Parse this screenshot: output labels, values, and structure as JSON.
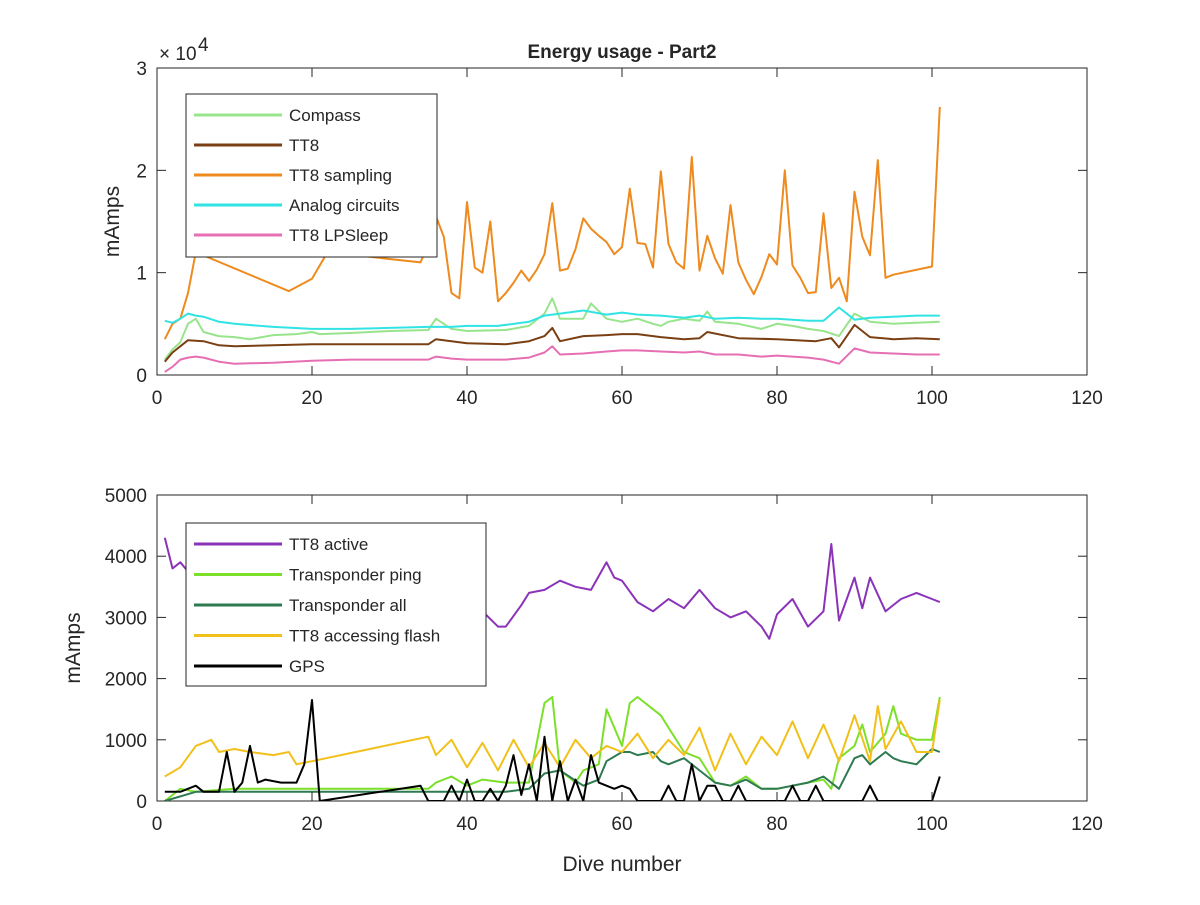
{
  "chart_data": [
    {
      "type": "line",
      "title": "Energy usage - Part2",
      "xlabel": "",
      "ylabel": "mAmps",
      "xlim": [
        0,
        120
      ],
      "ylim": [
        0,
        30000
      ],
      "xticks": [
        0,
        20,
        40,
        60,
        80,
        100,
        120
      ],
      "xtick_labels": [
        "0",
        "20",
        "40",
        "60",
        "80",
        "100",
        "120"
      ],
      "yticks": [
        0,
        10000,
        20000,
        30000
      ],
      "ytick_labels": [
        "0",
        "1",
        "2",
        "3"
      ],
      "y_exponent_label": "× 10",
      "y_exponent_power": "4",
      "legend_position": "top-left",
      "grid": false,
      "series": [
        {
          "name": "Compass",
          "color": "#98e48c",
          "x": [
            1,
            2,
            3,
            4,
            5,
            6,
            7,
            8,
            10,
            12,
            15,
            18,
            20,
            21,
            25,
            30,
            35,
            36,
            38,
            40,
            45,
            48,
            50,
            51,
            52,
            55,
            56,
            58,
            60,
            62,
            64,
            65,
            66,
            68,
            70,
            71,
            72,
            75,
            78,
            80,
            82,
            84,
            86,
            88,
            90,
            92,
            95,
            98,
            101
          ],
          "y": [
            1500,
            2500,
            3200,
            5000,
            5500,
            4200,
            4000,
            3800,
            3700,
            3500,
            3900,
            4000,
            4200,
            4000,
            4100,
            4300,
            4400,
            5500,
            4500,
            4300,
            4400,
            4800,
            6000,
            7500,
            5500,
            5500,
            7000,
            5500,
            5200,
            5500,
            5000,
            4800,
            5200,
            5500,
            5300,
            6200,
            5200,
            5000,
            4500,
            5000,
            4800,
            4500,
            4300,
            3800,
            6000,
            5200,
            5000,
            5100,
            5200
          ]
        },
        {
          "name": "TT8",
          "color": "#7a3f12",
          "x": [
            1,
            2,
            3,
            4,
            6,
            8,
            10,
            15,
            20,
            25,
            30,
            35,
            36,
            40,
            45,
            48,
            50,
            51,
            52,
            55,
            58,
            60,
            62,
            65,
            68,
            70,
            71,
            75,
            80,
            85,
            87,
            88,
            90,
            92,
            95,
            98,
            101
          ],
          "y": [
            1300,
            2200,
            2800,
            3400,
            3300,
            2900,
            2800,
            2900,
            3000,
            3000,
            3000,
            3000,
            3500,
            3100,
            3000,
            3300,
            3800,
            4600,
            3300,
            3800,
            3900,
            4000,
            4000,
            3700,
            3500,
            3600,
            4200,
            3600,
            3500,
            3300,
            3600,
            2700,
            4900,
            3700,
            3500,
            3600,
            3500
          ]
        },
        {
          "name": "TT8 sampling",
          "color": "#ee8a1e",
          "x": [
            1,
            2,
            3,
            4,
            5,
            17,
            20,
            22,
            34,
            35,
            36,
            37,
            38,
            39,
            40,
            41,
            42,
            43,
            44,
            45,
            46,
            47,
            48,
            49,
            50,
            51,
            52,
            53,
            54,
            55,
            56,
            57,
            58,
            59,
            60,
            61,
            62,
            63,
            64,
            65,
            66,
            67,
            68,
            69,
            70,
            71,
            72,
            73,
            74,
            75,
            76,
            77,
            78,
            79,
            80,
            81,
            82,
            83,
            84,
            85,
            86,
            87,
            88,
            89,
            90,
            91,
            92,
            93,
            94,
            95,
            100,
            101
          ],
          "y": [
            3500,
            5000,
            5500,
            8000,
            12000,
            8200,
            9400,
            12000,
            11000,
            12800,
            15500,
            13500,
            8000,
            7500,
            16900,
            10500,
            10000,
            15000,
            7200,
            8000,
            9000,
            10200,
            9200,
            10300,
            11800,
            16800,
            10200,
            10400,
            12300,
            15300,
            14300,
            13600,
            13000,
            11800,
            12500,
            18200,
            12900,
            12800,
            10500,
            19900,
            12800,
            11000,
            10400,
            21300,
            10200,
            13600,
            11400,
            9900,
            16600,
            11000,
            9300,
            7900,
            9600,
            11800,
            10800,
            20000,
            10700,
            9500,
            8000,
            8100,
            15800,
            8500,
            9500,
            7200,
            17900,
            13500,
            11700,
            21000,
            9500,
            9800,
            10600,
            26200
          ]
        },
        {
          "name": "Analog circuits",
          "color": "#31e3e3",
          "x": [
            1,
            2,
            3,
            4,
            5,
            6,
            8,
            10,
            15,
            20,
            25,
            30,
            35,
            38,
            40,
            44,
            48,
            50,
            52,
            55,
            58,
            60,
            62,
            65,
            68,
            70,
            72,
            75,
            78,
            80,
            82,
            84,
            86,
            88,
            90,
            92,
            95,
            98,
            101
          ],
          "y": [
            5300,
            5100,
            5500,
            6000,
            5800,
            5700,
            5200,
            5000,
            4700,
            4500,
            4500,
            4600,
            4700,
            4700,
            4800,
            4800,
            5200,
            5800,
            6000,
            6300,
            5900,
            6100,
            5900,
            5800,
            5600,
            5800,
            5500,
            5600,
            5500,
            5500,
            5400,
            5300,
            5300,
            6600,
            5400,
            5600,
            5700,
            5800,
            5800
          ]
        },
        {
          "name": "TT8 LPSleep",
          "color": "#e66fb4",
          "x": [
            1,
            2,
            3,
            4,
            5,
            6,
            8,
            10,
            15,
            20,
            25,
            30,
            35,
            36,
            38,
            40,
            45,
            48,
            50,
            51,
            52,
            55,
            58,
            60,
            62,
            65,
            68,
            70,
            72,
            75,
            78,
            80,
            82,
            84,
            86,
            88,
            90,
            92,
            95,
            98,
            101
          ],
          "y": [
            300,
            800,
            1500,
            1700,
            1800,
            1700,
            1300,
            1100,
            1200,
            1400,
            1500,
            1500,
            1500,
            1800,
            1600,
            1500,
            1500,
            1700,
            2200,
            2800,
            2000,
            2100,
            2300,
            2400,
            2400,
            2300,
            2200,
            2300,
            2000,
            2000,
            1800,
            1900,
            1800,
            1700,
            1500,
            1100,
            2600,
            2200,
            2100,
            2000,
            2000
          ]
        }
      ]
    },
    {
      "type": "line",
      "title": "",
      "xlabel": "Dive number",
      "ylabel": "mAmps",
      "xlim": [
        0,
        120
      ],
      "ylim": [
        0,
        5000
      ],
      "xticks": [
        0,
        20,
        40,
        60,
        80,
        100,
        120
      ],
      "xtick_labels": [
        "0",
        "20",
        "40",
        "60",
        "80",
        "100",
        "120"
      ],
      "yticks": [
        0,
        1000,
        2000,
        3000,
        4000,
        5000
      ],
      "ytick_labels": [
        "0",
        "1000",
        "2000",
        "3000",
        "4000",
        "5000"
      ],
      "legend_position": "top-left",
      "grid": false,
      "series": [
        {
          "name": "TT8 active",
          "color": "#8b33b8",
          "x": [
            1,
            2,
            3,
            4,
            5,
            6,
            8,
            10,
            15,
            20,
            25,
            30,
            35,
            38,
            40,
            42,
            44,
            45,
            47,
            48,
            50,
            52,
            54,
            56,
            58,
            59,
            60,
            62,
            64,
            66,
            68,
            70,
            72,
            74,
            76,
            78,
            79,
            80,
            82,
            84,
            86,
            87,
            88,
            90,
            91,
            92,
            94,
            96,
            98,
            100,
            101
          ],
          "y": [
            4300,
            3800,
            3900,
            3750,
            3300,
            3200,
            3200,
            3100,
            3150,
            3200,
            3150,
            3150,
            3150,
            3100,
            3050,
            3100,
            2850,
            2850,
            3200,
            3400,
            3450,
            3600,
            3500,
            3450,
            3900,
            3650,
            3600,
            3250,
            3100,
            3300,
            3150,
            3450,
            3150,
            3000,
            3100,
            2850,
            2650,
            3050,
            3300,
            2850,
            3100,
            4200,
            2950,
            3650,
            3150,
            3650,
            3100,
            3300,
            3400,
            3300,
            3250
          ]
        },
        {
          "name": "Transponder ping",
          "color": "#7ce02a",
          "x": [
            1,
            3,
            5,
            10,
            20,
            30,
            35,
            36,
            38,
            40,
            42,
            45,
            48,
            50,
            51,
            52,
            54,
            55,
            57,
            58,
            60,
            61,
            62,
            64,
            65,
            66,
            68,
            70,
            72,
            74,
            76,
            78,
            80,
            82,
            84,
            86,
            87,
            88,
            90,
            91,
            92,
            94,
            95,
            96,
            98,
            100,
            101
          ],
          "y": [
            0,
            200,
            150,
            200,
            200,
            200,
            200,
            300,
            400,
            250,
            350,
            300,
            300,
            1600,
            1700,
            500,
            300,
            500,
            600,
            1500,
            900,
            1600,
            1700,
            1500,
            1400,
            1200,
            800,
            700,
            300,
            250,
            400,
            200,
            200,
            250,
            300,
            350,
            200,
            700,
            900,
            1250,
            800,
            1100,
            1550,
            1100,
            1000,
            1000,
            1700
          ]
        },
        {
          "name": "Transponder all",
          "color": "#2e7a51",
          "x": [
            1,
            5,
            10,
            20,
            30,
            40,
            45,
            48,
            50,
            52,
            55,
            57,
            58,
            60,
            61,
            62,
            64,
            65,
            66,
            68,
            70,
            72,
            74,
            76,
            78,
            80,
            82,
            84,
            86,
            88,
            90,
            91,
            92,
            94,
            95,
            96,
            98,
            100,
            101
          ],
          "y": [
            0,
            150,
            150,
            150,
            150,
            150,
            150,
            200,
            450,
            500,
            250,
            350,
            650,
            800,
            800,
            750,
            800,
            650,
            600,
            700,
            500,
            300,
            250,
            350,
            200,
            200,
            250,
            300,
            400,
            200,
            700,
            750,
            600,
            800,
            700,
            650,
            600,
            850,
            800
          ]
        },
        {
          "name": "TT8 accessing flash",
          "color": "#f2c01a",
          "x": [
            1,
            3,
            5,
            7,
            8,
            10,
            12,
            15,
            17,
            18,
            20,
            35,
            36,
            38,
            40,
            42,
            44,
            46,
            48,
            50,
            52,
            54,
            56,
            58,
            60,
            62,
            64,
            66,
            68,
            70,
            72,
            74,
            76,
            78,
            80,
            82,
            84,
            86,
            88,
            90,
            92,
            93,
            94,
            96,
            98,
            100,
            101
          ],
          "y": [
            400,
            550,
            900,
            1000,
            800,
            850,
            800,
            750,
            800,
            600,
            650,
            1050,
            750,
            1000,
            550,
            950,
            500,
            1000,
            550,
            950,
            550,
            1000,
            700,
            900,
            800,
            1100,
            700,
            1000,
            750,
            1200,
            500,
            1100,
            600,
            1050,
            750,
            1300,
            700,
            1250,
            650,
            1400,
            650,
            1550,
            850,
            1300,
            800,
            800,
            1650
          ]
        },
        {
          "name": "GPS",
          "color": "#000000",
          "x": [
            1,
            3,
            5,
            6,
            8,
            9,
            10,
            11,
            12,
            13,
            14,
            16,
            18,
            19,
            20,
            21,
            34,
            35,
            36,
            37,
            38,
            39,
            40,
            41,
            42,
            43,
            44,
            45,
            46,
            47,
            48,
            49,
            50,
            51,
            52,
            53,
            54,
            55,
            56,
            57,
            58,
            59,
            60,
            61,
            62,
            63,
            64,
            65,
            66,
            67,
            68,
            69,
            70,
            71,
            72,
            73,
            74,
            75,
            76,
            77,
            78,
            79,
            80,
            81,
            82,
            83,
            84,
            85,
            86,
            87,
            88,
            89,
            90,
            91,
            92,
            93,
            94,
            95,
            96,
            97,
            98,
            99,
            100,
            101
          ],
          "y": [
            150,
            150,
            250,
            150,
            150,
            800,
            150,
            300,
            900,
            300,
            350,
            300,
            300,
            600,
            1650,
            0,
            250,
            0,
            0,
            0,
            250,
            0,
            350,
            0,
            0,
            200,
            0,
            250,
            750,
            100,
            600,
            0,
            1050,
            0,
            650,
            0,
            350,
            0,
            750,
            300,
            250,
            200,
            250,
            200,
            0,
            0,
            0,
            0,
            250,
            0,
            0,
            600,
            0,
            250,
            250,
            0,
            0,
            250,
            0,
            0,
            0,
            0,
            0,
            0,
            250,
            0,
            0,
            250,
            0,
            0,
            0,
            0,
            0,
            0,
            250,
            0,
            0,
            0,
            0,
            0,
            0,
            0,
            0,
            400
          ]
        }
      ]
    }
  ]
}
